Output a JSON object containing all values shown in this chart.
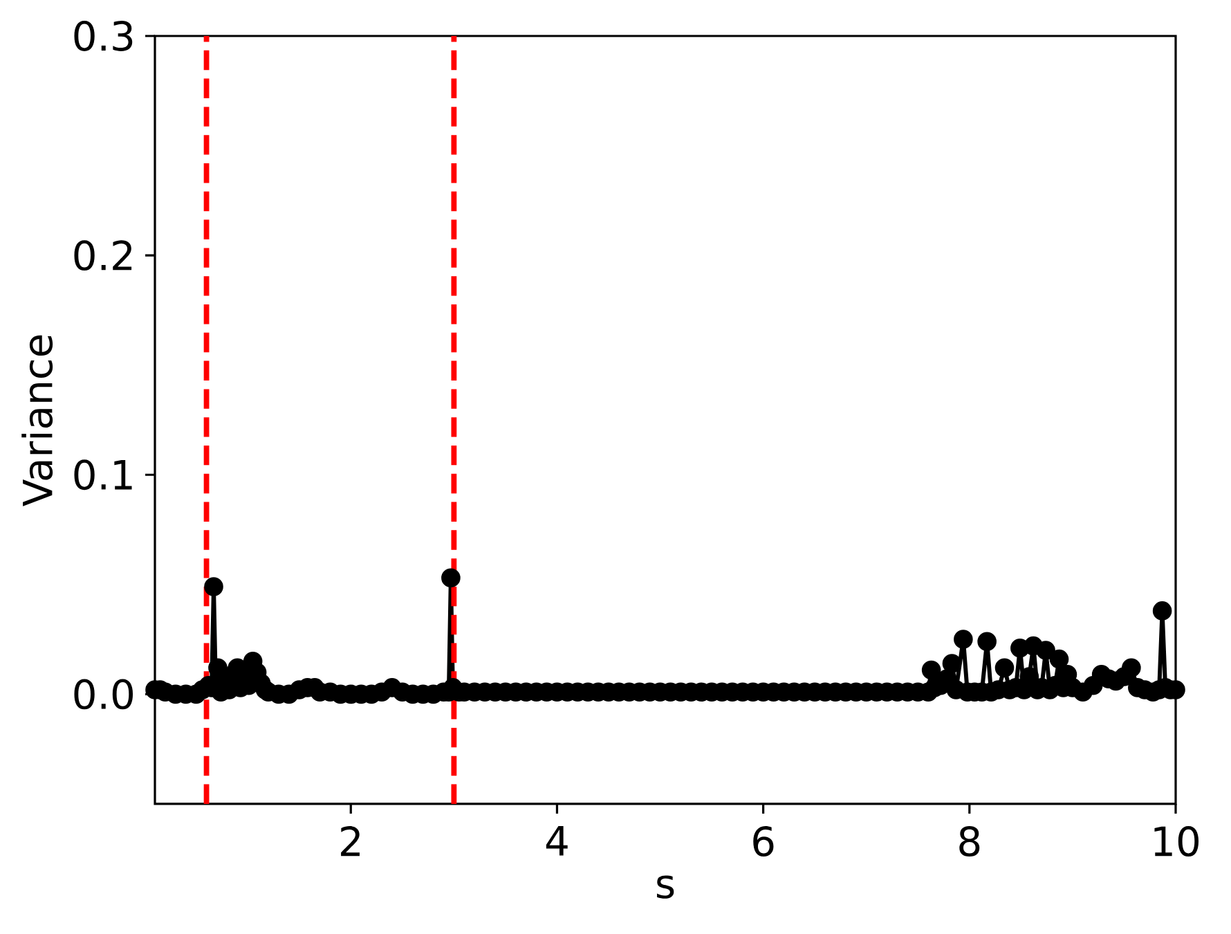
{
  "chart_data": {
    "type": "line",
    "xlabel": "s",
    "ylabel": "Variance",
    "xlim": [
      0.1,
      10
    ],
    "ylim": [
      -0.05,
      0.3
    ],
    "xticks": [
      2,
      4,
      6,
      8,
      10
    ],
    "yticks": [
      {
        "value": 0,
        "label": "0.0"
      },
      0.1,
      0.2,
      0.3
    ],
    "color": "#000000",
    "marker": "circle",
    "x": [
      0.1,
      0.15,
      0.2,
      0.3,
      0.4,
      0.5,
      0.56,
      0.62,
      0.65,
      0.67,
      0.69,
      0.71,
      0.74,
      0.78,
      0.82,
      0.86,
      0.9,
      0.93,
      0.97,
      1.01,
      1.05,
      1.09,
      1.13,
      1.17,
      1.2,
      1.3,
      1.4,
      1.5,
      1.58,
      1.65,
      1.7,
      1.8,
      1.9,
      2.0,
      2.1,
      2.2,
      2.3,
      2.4,
      2.5,
      2.6,
      2.7,
      2.8,
      2.9,
      2.95,
      2.97,
      2.99,
      3.05,
      3.1,
      3.2,
      3.3,
      3.4,
      3.5,
      3.6,
      3.7,
      3.8,
      3.9,
      4.0,
      4.1,
      4.2,
      4.3,
      4.4,
      4.5,
      4.6,
      4.7,
      4.8,
      4.9,
      5.0,
      5.1,
      5.2,
      5.3,
      5.4,
      5.5,
      5.6,
      5.7,
      5.8,
      5.9,
      6.0,
      6.1,
      6.2,
      6.3,
      6.4,
      6.5,
      6.6,
      6.7,
      6.8,
      6.9,
      7.0,
      7.1,
      7.2,
      7.3,
      7.4,
      7.5,
      7.6,
      7.63,
      7.66,
      7.72,
      7.78,
      7.83,
      7.87,
      7.94,
      7.98,
      8.05,
      8.12,
      8.17,
      8.21,
      8.28,
      8.34,
      8.39,
      8.45,
      8.49,
      8.53,
      8.58,
      8.62,
      8.66,
      8.7,
      8.74,
      8.78,
      8.83,
      8.87,
      8.91,
      8.95,
      9.0,
      9.1,
      9.2,
      9.28,
      9.35,
      9.42,
      9.5,
      9.57,
      9.63,
      9.7,
      9.78,
      9.84,
      9.87,
      9.9,
      9.95,
      10.0
    ],
    "values": [
      0.002,
      0.002,
      0.001,
      0.0,
      0.0,
      0.0,
      0.002,
      0.004,
      0.003,
      0.049,
      0.004,
      0.012,
      0.001,
      0.007,
      0.002,
      0.009,
      0.012,
      0.003,
      0.01,
      0.004,
      0.015,
      0.01,
      0.005,
      0.002,
      0.001,
      0.0,
      0.0,
      0.002,
      0.003,
      0.003,
      0.001,
      0.001,
      0.0,
      0.0,
      0.0,
      0.0,
      0.001,
      0.003,
      0.001,
      0.0,
      0.0,
      0.0,
      0.001,
      0.001,
      0.053,
      0.003,
      0.001,
      0.001,
      0.001,
      0.001,
      0.001,
      0.001,
      0.001,
      0.001,
      0.001,
      0.001,
      0.001,
      0.001,
      0.001,
      0.001,
      0.001,
      0.001,
      0.001,
      0.001,
      0.001,
      0.001,
      0.001,
      0.001,
      0.001,
      0.001,
      0.001,
      0.001,
      0.001,
      0.001,
      0.001,
      0.001,
      0.001,
      0.001,
      0.001,
      0.001,
      0.001,
      0.001,
      0.001,
      0.001,
      0.001,
      0.001,
      0.001,
      0.001,
      0.001,
      0.001,
      0.001,
      0.001,
      0.001,
      0.011,
      0.003,
      0.004,
      0.007,
      0.014,
      0.002,
      0.025,
      0.001,
      0.001,
      0.001,
      0.024,
      0.001,
      0.002,
      0.012,
      0.002,
      0.003,
      0.021,
      0.002,
      0.008,
      0.022,
      0.002,
      0.003,
      0.02,
      0.002,
      0.004,
      0.016,
      0.003,
      0.009,
      0.003,
      0.001,
      0.004,
      0.009,
      0.007,
      0.006,
      0.008,
      0.012,
      0.003,
      0.002,
      0.001,
      0.002,
      0.038,
      0.003,
      0.002,
      0.002
    ],
    "ref_lines": [
      {
        "axis": "x",
        "value": 0.6,
        "color": "#ff0000",
        "line_style": "dashed"
      },
      {
        "axis": "x",
        "value": 3.0,
        "color": "#ff0000",
        "line_style": "dashed"
      }
    ]
  }
}
